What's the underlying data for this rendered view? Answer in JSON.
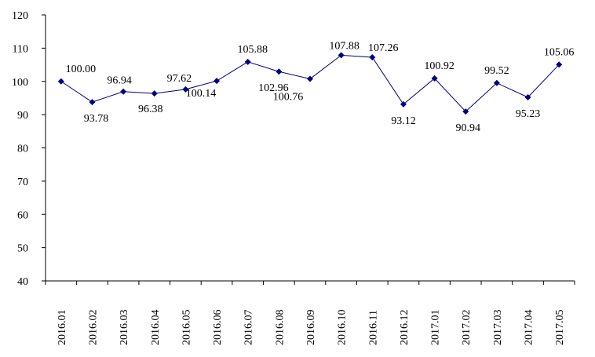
{
  "chart_data": {
    "type": "line",
    "title": "",
    "xlabel": "",
    "ylabel": "",
    "ylim": [
      40,
      120
    ],
    "yticks": [
      40,
      50,
      60,
      70,
      80,
      90,
      100,
      110,
      120
    ],
    "grid": false,
    "legend": "none",
    "categories": [
      "2016.01",
      "2016.02",
      "2016.03",
      "2016.04",
      "2016.05",
      "2016.06",
      "2016.07",
      "2016.08",
      "2016.09",
      "2016.10",
      "2016.11",
      "2016.12",
      "2017.01",
      "2017.02",
      "2017.03",
      "2017.04",
      "2017.05"
    ],
    "series": [
      {
        "name": "",
        "color": "#000080",
        "values": [
          100.0,
          93.78,
          96.94,
          96.38,
          97.62,
          100.14,
          105.88,
          102.96,
          100.76,
          107.88,
          107.26,
          93.12,
          100.92,
          90.94,
          99.52,
          95.23,
          105.06
        ],
        "labels": [
          "100.00",
          "93.78",
          "96.94",
          "96.38",
          "97.62",
          "100.14",
          "105.88",
          "102.96",
          "100.76",
          "107.88",
          "107.26",
          "93.12",
          "100.92",
          "90.94",
          "99.52",
          "95.23",
          "105.06"
        ]
      }
    ]
  }
}
